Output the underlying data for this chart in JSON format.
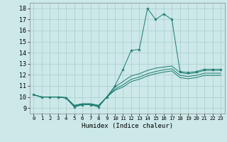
{
  "xlabel": "Humidex (Indice chaleur)",
  "background_color": "#cce8e8",
  "grid_color": "#aacccc",
  "line_color": "#1a7a6e",
  "xlim": [
    -0.5,
    23.5
  ],
  "ylim": [
    8.5,
    18.5
  ],
  "xticks": [
    0,
    1,
    2,
    3,
    4,
    5,
    6,
    7,
    8,
    9,
    10,
    11,
    12,
    13,
    14,
    15,
    16,
    17,
    18,
    19,
    20,
    21,
    22,
    23
  ],
  "yticks": [
    9,
    10,
    11,
    12,
    13,
    14,
    15,
    16,
    17,
    18
  ],
  "x": [
    0,
    1,
    2,
    3,
    4,
    5,
    6,
    7,
    8,
    9,
    10,
    11,
    12,
    13,
    14,
    15,
    16,
    17,
    18,
    19,
    20,
    21,
    22,
    23
  ],
  "y_main": [
    10.2,
    10.0,
    10.0,
    10.0,
    9.9,
    9.1,
    9.3,
    9.3,
    9.1,
    10.0,
    11.0,
    12.5,
    14.2,
    14.3,
    18.0,
    17.0,
    17.5,
    17.0,
    12.3,
    12.2,
    12.3,
    12.5,
    12.5,
    12.5
  ],
  "y_line2": [
    10.2,
    10.0,
    10.0,
    10.0,
    9.9,
    9.15,
    9.3,
    9.3,
    9.15,
    10.0,
    10.9,
    11.4,
    11.9,
    12.1,
    12.4,
    12.6,
    12.7,
    12.8,
    12.2,
    12.1,
    12.2,
    12.4,
    12.4,
    12.4
  ],
  "y_line3": [
    10.2,
    10.0,
    10.0,
    10.0,
    9.95,
    9.2,
    9.35,
    9.35,
    9.2,
    10.0,
    10.7,
    11.1,
    11.6,
    11.8,
    12.1,
    12.3,
    12.45,
    12.55,
    11.95,
    11.85,
    11.95,
    12.15,
    12.15,
    12.15
  ],
  "y_line4": [
    10.2,
    10.0,
    10.0,
    10.0,
    9.95,
    9.25,
    9.4,
    9.4,
    9.25,
    10.0,
    10.6,
    10.9,
    11.4,
    11.6,
    11.9,
    12.1,
    12.25,
    12.35,
    11.75,
    11.65,
    11.75,
    11.95,
    11.95,
    11.95
  ]
}
